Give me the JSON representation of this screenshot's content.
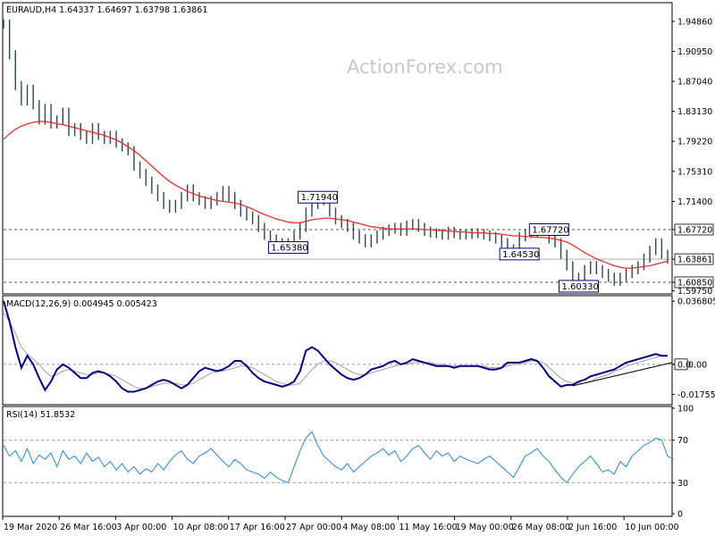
{
  "colors": {
    "background": "#ffffff",
    "axis": "#000000",
    "grid_dash": "#888888",
    "bars": "#2e4a4a",
    "ma": "#e03030",
    "macd_main": "#000080",
    "macd_signal": "#a0a0a0",
    "rsi": "#3a8fd8",
    "label_border": "#000080",
    "trendline": "#000000"
  },
  "chart_data": [
    {
      "type": "line",
      "title": "EURAUD,H4  1.64337 1.64697 1.63798 1.63861",
      "watermark": "ActionForex.com",
      "ylim": [
        1.5945,
        1.9718
      ],
      "y_ticks": [
        "1.94860",
        "1.90950",
        "1.87040",
        "1.83130",
        "1.79220",
        "1.75310",
        "1.71400",
        "1.67720",
        "1.63861",
        "1.60850",
        "1.59750"
      ],
      "horizontal_levels": [
        1.6772,
        1.6386,
        1.6085
      ],
      "annotations": [
        {
          "text": "1.71940",
          "x": 53,
          "y": 1.7194
        },
        {
          "text": "1.65380",
          "x": 48,
          "y": 1.6538
        },
        {
          "text": "1.67720",
          "x": 92,
          "y": 1.6772
        },
        {
          "text": "1.64530",
          "x": 87,
          "y": 1.6453
        },
        {
          "text": "1.60330",
          "x": 97,
          "y": 1.6033
        }
      ],
      "series": [
        {
          "kind": "ohlc_closes",
          "values": [
            1.945,
            1.905,
            1.865,
            1.845,
            1.86,
            1.84,
            1.82,
            1.835,
            1.815,
            1.82,
            1.83,
            1.805,
            1.81,
            1.8,
            1.795,
            1.81,
            1.8,
            1.795,
            1.8,
            1.79,
            1.785,
            1.78,
            1.76,
            1.75,
            1.74,
            1.73,
            1.72,
            1.71,
            1.705,
            1.71,
            1.72,
            1.73,
            1.72,
            1.715,
            1.71,
            1.715,
            1.72,
            1.728,
            1.72,
            1.71,
            1.7,
            1.695,
            1.69,
            1.68,
            1.67,
            1.665,
            1.66,
            1.66,
            1.655,
            1.67,
            1.68,
            1.7,
            1.71,
            1.718,
            1.715,
            1.7,
            1.69,
            1.685,
            1.68,
            1.67,
            1.665,
            1.66,
            1.665,
            1.67,
            1.675,
            1.678,
            1.68,
            1.675,
            1.683,
            1.685,
            1.68,
            1.675,
            1.673,
            1.672,
            1.67,
            1.675,
            1.672,
            1.67,
            1.671,
            1.673,
            1.672,
            1.67,
            1.668,
            1.665,
            1.66,
            1.65,
            1.652,
            1.668,
            1.672,
            1.674,
            1.676,
            1.675,
            1.665,
            1.66,
            1.645,
            1.63,
            1.615,
            1.608,
            1.625,
            1.63,
            1.625,
            1.62,
            1.615,
            1.61,
            1.615,
            1.62,
            1.625,
            1.63,
            1.64,
            1.65,
            1.66,
            1.645,
            1.639
          ]
        },
        {
          "kind": "moving_average",
          "values": [
            1.795,
            1.802,
            1.808,
            1.812,
            1.815,
            1.817,
            1.818,
            1.818,
            1.817,
            1.815,
            1.814,
            1.812,
            1.81,
            1.808,
            1.806,
            1.804,
            1.802,
            1.8,
            1.797,
            1.794,
            1.79,
            1.785,
            1.78,
            1.774,
            1.767,
            1.76,
            1.753,
            1.746,
            1.74,
            1.735,
            1.731,
            1.727,
            1.724,
            1.721,
            1.719,
            1.717,
            1.715,
            1.714,
            1.713,
            1.712,
            1.71,
            1.707,
            1.704,
            1.7,
            1.697,
            1.694,
            1.691,
            1.689,
            1.687,
            1.686,
            1.686,
            1.688,
            1.69,
            1.691,
            1.692,
            1.692,
            1.691,
            1.69,
            1.689,
            1.687,
            1.685,
            1.683,
            1.681,
            1.68,
            1.679,
            1.678,
            1.678,
            1.678,
            1.678,
            1.678,
            1.678,
            1.677,
            1.677,
            1.676,
            1.676,
            1.675,
            1.675,
            1.674,
            1.674,
            1.673,
            1.673,
            1.673,
            1.672,
            1.672,
            1.671,
            1.67,
            1.669,
            1.669,
            1.668,
            1.668,
            1.667,
            1.667,
            1.666,
            1.665,
            1.663,
            1.661,
            1.657,
            1.652,
            1.647,
            1.643,
            1.639,
            1.636,
            1.633,
            1.63,
            1.628,
            1.627,
            1.627,
            1.628,
            1.629,
            1.63,
            1.632,
            1.634,
            1.636
          ]
        }
      ],
      "x_labels": [
        "19 Mar 2020",
        "26 Mar 16:00",
        "3 Apr 00:00",
        "10 Apr 08:00",
        "17 Apr 16:00",
        "27 Apr 00:00",
        "4 May 08:00",
        "11 May 16:00",
        "19 May 00:00",
        "26 May 08:00",
        "2 Jun 16:00",
        "10 Jun 00:00"
      ]
    },
    {
      "type": "line",
      "title": "MACD(12,26,9) 0.004945 0.005423",
      "ylim": [
        -0.023,
        0.0395
      ],
      "y_ticks": [
        "0.036805",
        "0.0",
        "0.00",
        "-0.017553"
      ],
      "series": [
        {
          "name": "MACD",
          "values": [
            0.037,
            0.025,
            0.01,
            -0.002,
            0.005,
            0.0,
            -0.008,
            -0.015,
            -0.01,
            -0.003,
            0.0,
            -0.002,
            -0.005,
            -0.008,
            -0.008,
            -0.005,
            -0.004,
            -0.005,
            -0.007,
            -0.01,
            -0.014,
            -0.016,
            -0.016,
            -0.015,
            -0.014,
            -0.012,
            -0.01,
            -0.009,
            -0.01,
            -0.012,
            -0.014,
            -0.012,
            -0.008,
            -0.004,
            -0.002,
            -0.003,
            -0.004,
            -0.003,
            -0.001,
            0.002,
            0.002,
            -0.001,
            -0.005,
            -0.008,
            -0.01,
            -0.011,
            -0.012,
            -0.013,
            -0.012,
            -0.01,
            -0.004,
            0.008,
            0.01,
            0.008,
            0.004,
            0.0,
            -0.003,
            -0.006,
            -0.008,
            -0.009,
            -0.008,
            -0.006,
            -0.003,
            -0.002,
            -0.001,
            0.001,
            0.002,
            0.0,
            0.001,
            0.003,
            0.002,
            0.001,
            0.0,
            -0.001,
            -0.001,
            -0.001,
            -0.002,
            -0.001,
            -0.001,
            -0.001,
            -0.001,
            -0.002,
            -0.003,
            -0.003,
            -0.002,
            0.001,
            0.001,
            0.001,
            0.002,
            0.003,
            0.002,
            -0.002,
            -0.007,
            -0.01,
            -0.013,
            -0.012,
            -0.012,
            -0.01,
            -0.009,
            -0.007,
            -0.006,
            -0.005,
            -0.004,
            -0.003,
            -0.001,
            0.001,
            0.002,
            0.003,
            0.004,
            0.005,
            0.006,
            0.005,
            0.005
          ]
        },
        {
          "name": "Signal",
          "values": [
            0.03,
            0.025,
            0.018,
            0.01,
            0.006,
            0.003,
            0.0,
            -0.004,
            -0.007,
            -0.006,
            -0.004,
            -0.003,
            -0.004,
            -0.005,
            -0.006,
            -0.006,
            -0.005,
            -0.005,
            -0.006,
            -0.007,
            -0.009,
            -0.011,
            -0.013,
            -0.014,
            -0.014,
            -0.013,
            -0.012,
            -0.011,
            -0.011,
            -0.011,
            -0.012,
            -0.012,
            -0.011,
            -0.009,
            -0.007,
            -0.005,
            -0.004,
            -0.004,
            -0.003,
            -0.002,
            -0.001,
            -0.001,
            -0.002,
            -0.004,
            -0.006,
            -0.008,
            -0.01,
            -0.011,
            -0.012,
            -0.012,
            -0.011,
            -0.007,
            -0.003,
            0.0,
            0.002,
            0.002,
            0.001,
            -0.001,
            -0.003,
            -0.005,
            -0.006,
            -0.006,
            -0.005,
            -0.004,
            -0.003,
            -0.002,
            -0.001,
            0.0,
            0.0,
            0.001,
            0.001,
            0.001,
            0.001,
            0.0,
            0.0,
            -0.001,
            -0.001,
            -0.001,
            -0.001,
            -0.001,
            -0.001,
            -0.001,
            -0.002,
            -0.002,
            -0.002,
            -0.001,
            0.0,
            0.0,
            0.001,
            0.002,
            0.002,
            0.001,
            -0.002,
            -0.005,
            -0.008,
            -0.01,
            -0.011,
            -0.011,
            -0.011,
            -0.01,
            -0.008,
            -0.007,
            -0.006,
            -0.004,
            -0.003,
            -0.001,
            0.0,
            0.001,
            0.002,
            0.003,
            0.004,
            0.005,
            0.005
          ]
        }
      ],
      "trendline": {
        "from": [
          96,
          -0.0125
        ],
        "to": [
          114,
          0.0
        ]
      }
    },
    {
      "type": "line",
      "title": "RSI(14) 51.8532",
      "ylim": [
        0,
        100
      ],
      "y_ticks": [
        "100",
        "70",
        "30",
        "0"
      ],
      "levels": [
        70,
        30
      ],
      "series": [
        {
          "name": "RSI",
          "values": [
            65,
            55,
            60,
            50,
            62,
            48,
            56,
            52,
            58,
            45,
            60,
            52,
            55,
            48,
            58,
            50,
            54,
            45,
            50,
            42,
            48,
            40,
            45,
            38,
            43,
            40,
            48,
            42,
            50,
            56,
            60,
            52,
            48,
            55,
            58,
            62,
            56,
            50,
            45,
            52,
            48,
            42,
            40,
            38,
            34,
            40,
            35,
            32,
            30,
            45,
            60,
            72,
            78,
            65,
            55,
            50,
            45,
            42,
            48,
            40,
            45,
            50,
            55,
            58,
            62,
            56,
            60,
            50,
            55,
            62,
            65,
            58,
            52,
            60,
            55,
            58,
            50,
            55,
            52,
            50,
            48,
            52,
            55,
            50,
            45,
            40,
            35,
            45,
            55,
            58,
            62,
            55,
            50,
            42,
            35,
            30,
            38,
            45,
            50,
            55,
            48,
            40,
            42,
            38,
            50,
            45,
            55,
            60,
            65,
            68,
            72,
            70,
            55,
            52
          ]
        }
      ]
    }
  ]
}
